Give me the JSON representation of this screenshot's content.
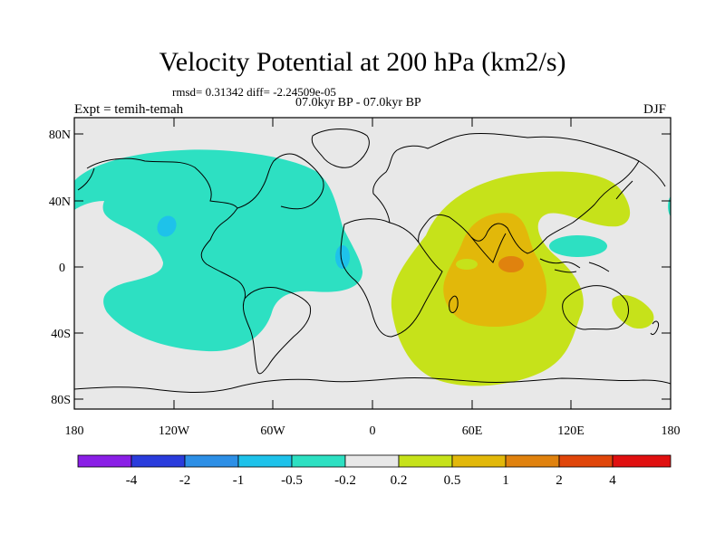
{
  "title": "Velocity Potential at 200 hPa (km2/s)",
  "stats": "rmsd= 0.31342 diff= -2.24509e-05",
  "subtitle": "07.0kyr BP - 07.0kyr BP",
  "expt": "Expt = temih-temah",
  "season": "DJF",
  "lat_ticks": [
    "80N",
    "40N",
    "0",
    "40S",
    "80S"
  ],
  "lon_ticks": [
    "180",
    "120W",
    "60W",
    "0",
    "60E",
    "120E",
    "180"
  ],
  "colorbar": {
    "labels": [
      "-4",
      "-2",
      "-1",
      "-0.5",
      "-0.2",
      "0.2",
      "0.5",
      "1",
      "2",
      "4"
    ],
    "colors": [
      "#8a1fe6",
      "#2a3cdc",
      "#2d8fe6",
      "#1ec2ea",
      "#2de0c2",
      "#e8e8e8",
      "#c6e21a",
      "#e2b80a",
      "#e0820e",
      "#e0460a",
      "#e01010"
    ]
  },
  "colors": {
    "background": "#e8e8e8",
    "neg_weak": "#2de0c2",
    "neg_mid": "#1ec2ea",
    "pos_weak": "#c6e21a",
    "pos_mid": "#e2b80a",
    "pos_strong": "#e0820e"
  }
}
